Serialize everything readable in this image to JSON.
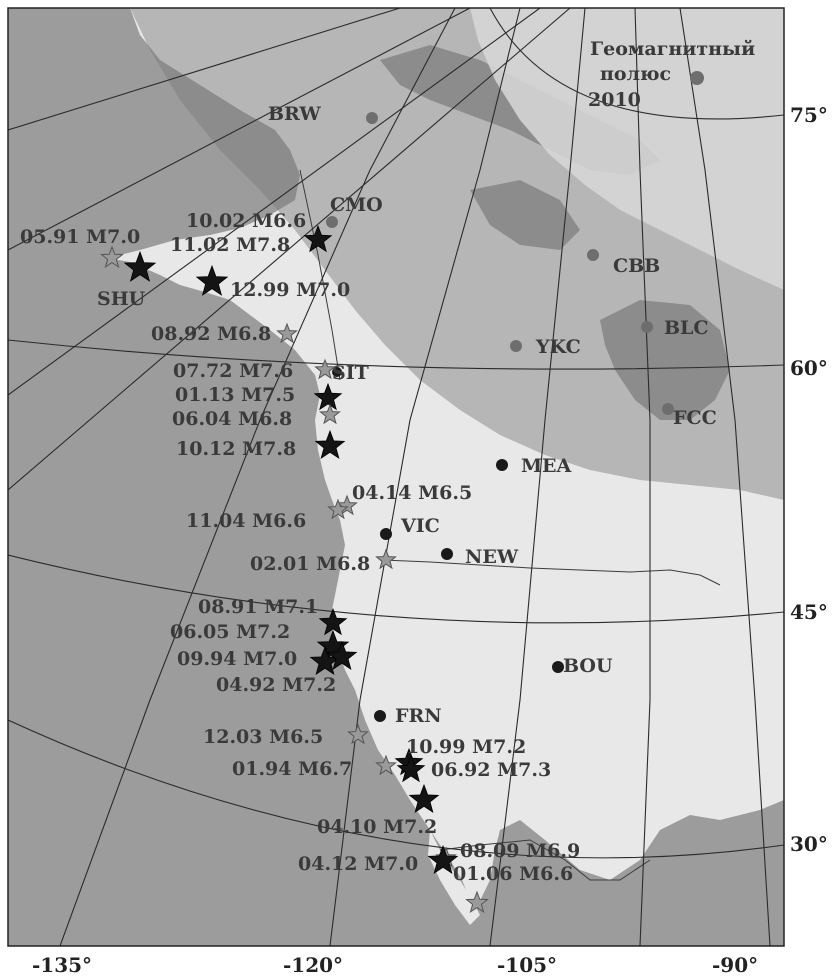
{
  "map": {
    "pole_label_line1": "Геомагнитный",
    "pole_label_line2": "полюс",
    "pole_label_line3": "2010",
    "lat_labels": [
      "75°",
      "60°",
      "45°",
      "30°"
    ],
    "lon_labels": [
      "-135°",
      "-120°",
      "-105°",
      "-90°"
    ],
    "colors": {
      "ocean": "#9c9c9c",
      "land": "#e8e8e8",
      "auroral_zone": "#b0b0b0",
      "polar_cap": "#d8d8d8",
      "station_grey": "#6e6e6e",
      "station_black": "#1a1a1a",
      "star_black": "#141414",
      "star_grey": "#9a9a9a"
    }
  },
  "stations": [
    {
      "code": "BRW",
      "color": "grey"
    },
    {
      "code": "CMO",
      "color": "grey"
    },
    {
      "code": "SHU",
      "color": "black"
    },
    {
      "code": "CBB",
      "color": "grey"
    },
    {
      "code": "BLC",
      "color": "grey"
    },
    {
      "code": "YKC",
      "color": "grey"
    },
    {
      "code": "SIT",
      "color": "black"
    },
    {
      "code": "FCC",
      "color": "grey"
    },
    {
      "code": "MEA",
      "color": "black"
    },
    {
      "code": "VIC",
      "color": "black"
    },
    {
      "code": "NEW",
      "color": "black"
    },
    {
      "code": "BOU",
      "color": "black"
    },
    {
      "code": "FRN",
      "color": "black"
    }
  ],
  "earthquakes": [
    {
      "label": "05.91 M7.0",
      "color": "grey"
    },
    {
      "label": "10.02 M6.6",
      "color": "black"
    },
    {
      "label": "11.02 M7.8",
      "color": "black"
    },
    {
      "label": "12.99 M7.0",
      "color": "black"
    },
    {
      "label": "08.92 M6.8",
      "color": "grey"
    },
    {
      "label": "07.72 M7.6",
      "color": "grey"
    },
    {
      "label": "01.13 M7.5",
      "color": "black"
    },
    {
      "label": "06.04 M6.8",
      "color": "grey"
    },
    {
      "label": "10.12 M7.8",
      "color": "black"
    },
    {
      "label": "04.14 M6.5",
      "color": "grey"
    },
    {
      "label": "11.04 M6.6",
      "color": "grey"
    },
    {
      "label": "02.01 M6.8",
      "color": "grey"
    },
    {
      "label": "08.91 M7.1",
      "color": "black"
    },
    {
      "label": "06.05 M7.2",
      "color": "black"
    },
    {
      "label": "09.94 M7.0",
      "color": "black"
    },
    {
      "label": "04.92 M7.2",
      "color": "black"
    },
    {
      "label": "12.03 M6.5",
      "color": "grey"
    },
    {
      "label": "10.99 M7.2",
      "color": "black"
    },
    {
      "label": "06.92 M7.3",
      "color": "black"
    },
    {
      "label": "01.94 M6.7",
      "color": "grey"
    },
    {
      "label": "04.10 M7.2",
      "color": "black"
    },
    {
      "label": "08.09 M6.9",
      "color": "grey"
    },
    {
      "label": "04.12 M7.0",
      "color": "black"
    },
    {
      "label": "01.06 M6.6",
      "color": "grey"
    }
  ]
}
